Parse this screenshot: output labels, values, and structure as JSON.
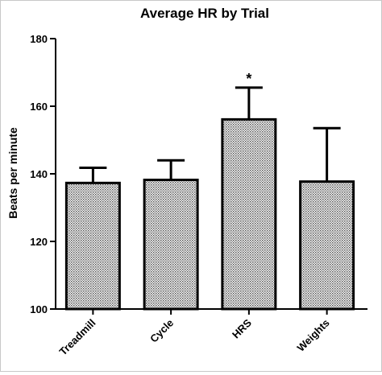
{
  "chart_data": {
    "type": "bar",
    "title": "Average HR by Trial",
    "xlabel": "",
    "ylabel": "Beats per minute",
    "ylim": [
      100,
      180
    ],
    "yticks": [
      100,
      120,
      140,
      160,
      180
    ],
    "categories": [
      "Treadmill",
      "Cycle",
      "HRS",
      "Weights"
    ],
    "series": [
      {
        "values": [
          137.3,
          138.2,
          156.1,
          137.7
        ],
        "error_plus": [
          4.5,
          5.8,
          9.4,
          15.8
        ]
      }
    ],
    "annotations": [
      {
        "category": "HRS",
        "text": "*"
      }
    ],
    "grid": false,
    "legend": "none",
    "colors": {
      "bar_edge": "#000000",
      "bar_fill_pattern": "dotted-gray",
      "axis": "#000000"
    }
  }
}
